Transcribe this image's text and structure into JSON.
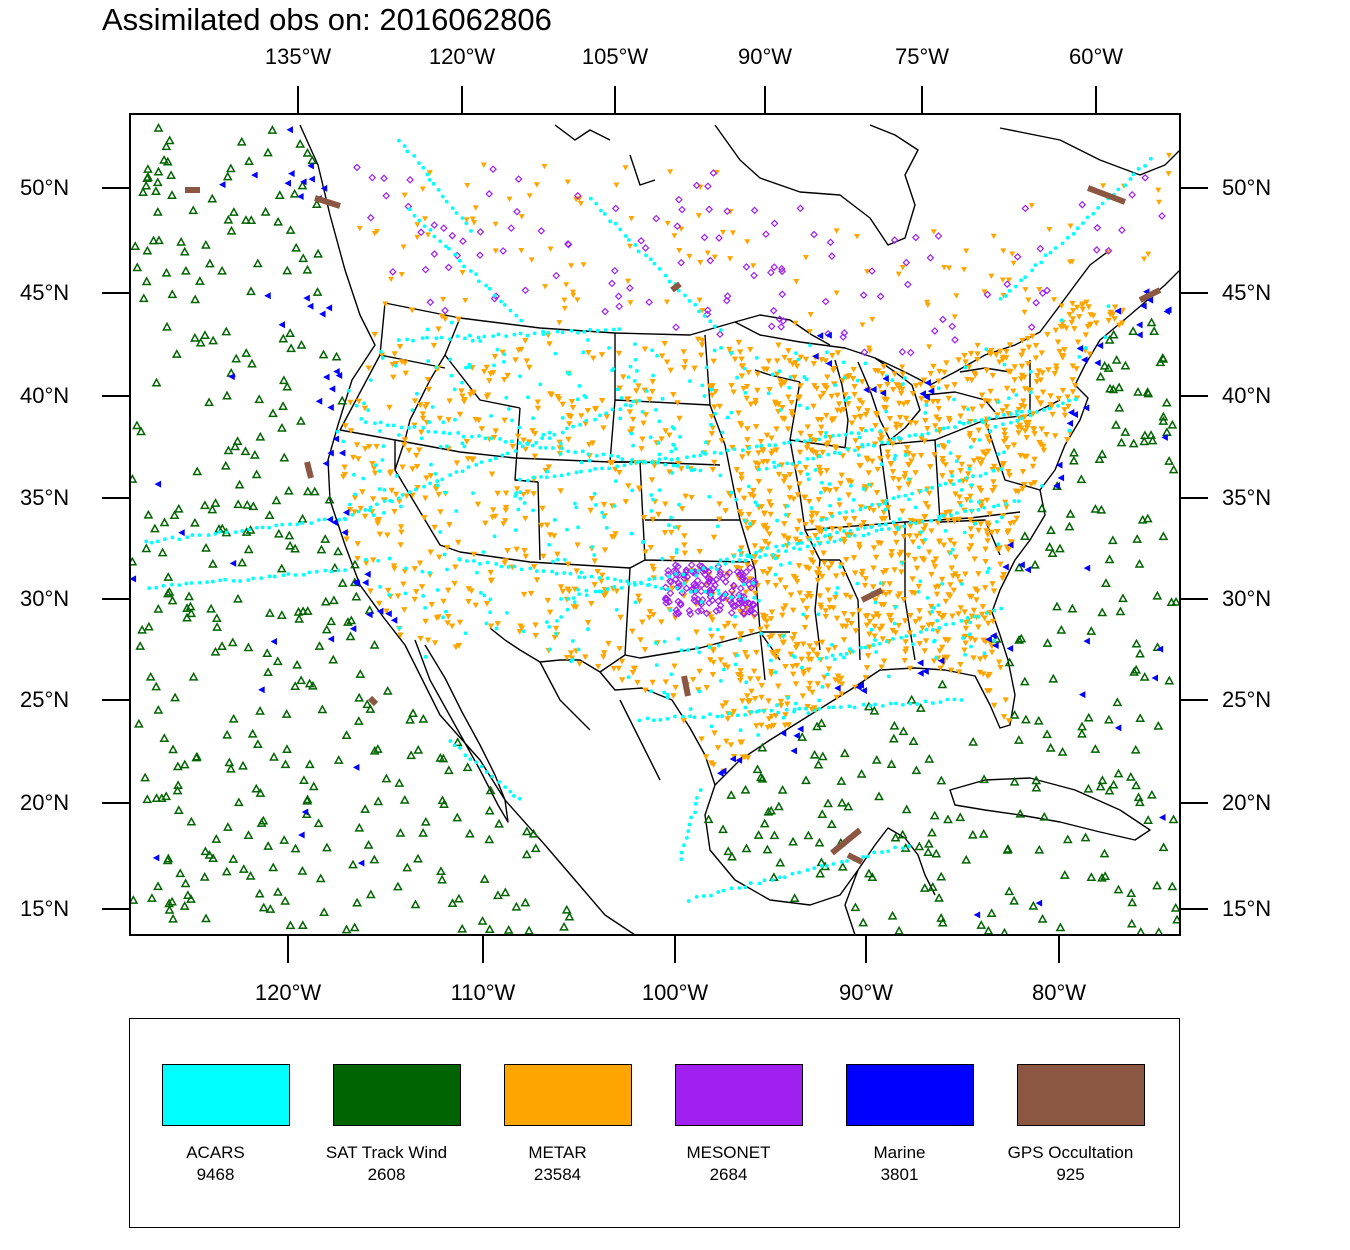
{
  "title": "Assimilated obs on: 2016062806",
  "axes": {
    "top_lon_labels": [
      "135°W",
      "120°W",
      "105°W",
      "90°W",
      "75°W",
      "60°W"
    ],
    "bottom_lon_labels": [
      "120°W",
      "110°W",
      "100°W",
      "90°W",
      "80°W"
    ],
    "left_lat_labels": [
      "50°N",
      "45°N",
      "40°N",
      "35°N",
      "30°N",
      "25°N",
      "20°N",
      "15°N"
    ],
    "right_lat_labels": [
      "50°N",
      "45°N",
      "40°N",
      "35°N",
      "30°N",
      "25°N",
      "20°N",
      "15°N"
    ]
  },
  "legend": {
    "items": [
      {
        "name": "ACARS",
        "count": "9468",
        "color": "#00ffff"
      },
      {
        "name": "SAT Track Wind",
        "count": "2608",
        "color": "#006400"
      },
      {
        "name": "METAR",
        "count": "23584",
        "color": "#ffa500"
      },
      {
        "name": "MESONET",
        "count": "2684",
        "color": "#a020f0"
      },
      {
        "name": "Marine",
        "count": "3801",
        "color": "#0000ff"
      },
      {
        "name": "GPS Occultation",
        "count": "925",
        "color": "#8b5742"
      }
    ]
  },
  "map": {
    "projection": "lambert-conformal",
    "domain": "CONUS",
    "frame_color": "#000000",
    "boundary_color": "#000000",
    "marker_shapes": {
      "ACARS": "small-dot",
      "SAT Track Wind": "open-triangle-up",
      "METAR": "filled-triangle-down",
      "MESONET": "open-diamond",
      "Marine": "filled-triangle-left",
      "GPS Occultation": "thick-segment"
    }
  }
}
